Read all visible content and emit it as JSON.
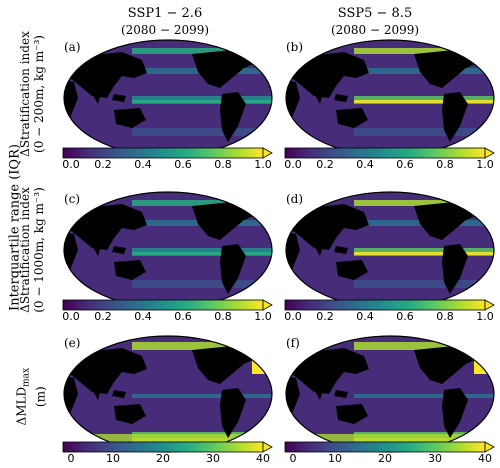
{
  "columns": [
    {
      "scenario": "SSP1 − 2.6",
      "period": "(2080 − 2099)"
    },
    {
      "scenario": "SSP5 − 8.5",
      "period": "(2080 − 2099)"
    }
  ],
  "side_label": "Interquartile range (IQR)",
  "rows": [
    {
      "label_line1": "ΔStratification index",
      "label_line2": "(0 − 200m, kg m⁻³)",
      "ticks": [
        "0.0",
        "0.2",
        "0.4",
        "0.6",
        "0.8",
        "1.0"
      ]
    },
    {
      "label_line1": "ΔStratification index",
      "label_line2": "(0 − 1000m, kg m⁻³)",
      "ticks": [
        "0.0",
        "0.2",
        "0.4",
        "0.6",
        "0.8",
        "1.0"
      ]
    },
    {
      "label_line1": "ΔMLD",
      "label_sub": "max",
      "label_line2": "(m)",
      "ticks": [
        "0",
        "10",
        "20",
        "30",
        "40"
      ]
    }
  ],
  "panels": [
    "(a)",
    "(b)",
    "(c)",
    "(d)",
    "(e)",
    "(f)"
  ],
  "colormap": [
    "#440154",
    "#472c7a",
    "#3b518b",
    "#2c718e",
    "#21908d",
    "#27ad81",
    "#5cc863",
    "#aadc32",
    "#fde725"
  ]
}
